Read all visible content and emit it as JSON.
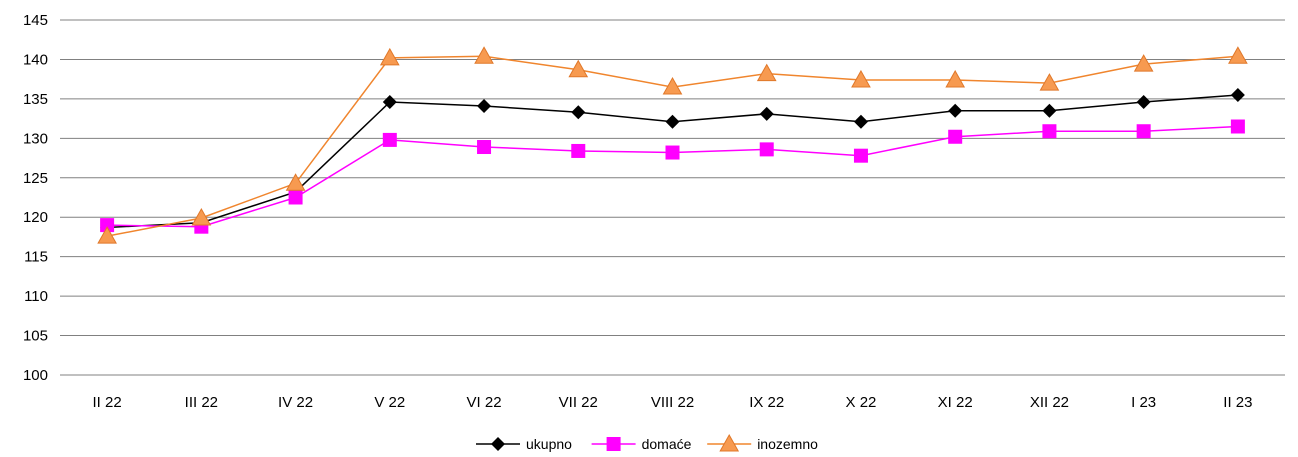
{
  "chart_data": {
    "type": "line",
    "categories": [
      "II 22",
      "III 22",
      "IV 22",
      "V 22",
      "VI 22",
      "VII 22",
      "VIII 22",
      "IX 22",
      "X 22",
      "XI 22",
      "XII 22",
      "I 23",
      "II 23"
    ],
    "ylim": [
      100,
      145
    ],
    "yticks": [
      100,
      105,
      110,
      115,
      120,
      125,
      130,
      135,
      140,
      145
    ],
    "grid": true,
    "legend_position": "bottom",
    "series": [
      {
        "name": "ukupno",
        "color": "#000000",
        "marker": "diamond",
        "values": [
          118.7,
          119.3,
          123.2,
          134.6,
          134.1,
          133.3,
          132.1,
          133.1,
          132.1,
          133.5,
          133.5,
          134.6,
          135.5
        ]
      },
      {
        "name": "domaće",
        "color": "#ff00ff",
        "marker": "square",
        "values": [
          119.0,
          118.8,
          122.5,
          129.8,
          128.9,
          128.4,
          128.2,
          128.6,
          127.8,
          130.2,
          130.9,
          130.9,
          131.5
        ]
      },
      {
        "name": "inozemno",
        "color": "#f0852d",
        "marker": "triangle",
        "values": [
          117.6,
          119.9,
          124.3,
          140.2,
          140.4,
          138.7,
          136.5,
          138.2,
          137.4,
          137.4,
          137.0,
          139.4,
          140.4
        ]
      }
    ]
  }
}
